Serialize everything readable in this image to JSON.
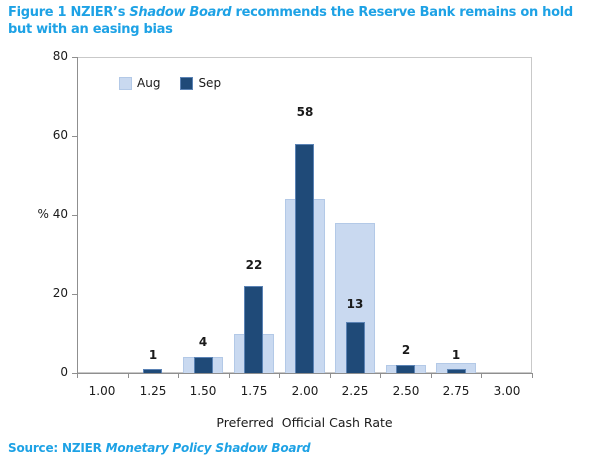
{
  "title": {
    "part1": "Figure 1 NZIER’s ",
    "italic": "Shadow Board",
    "part2": " recommends the Reserve Bank remains on hold but with an easing bias"
  },
  "source": {
    "prefix": "Source: NZIER ",
    "italic": "Monetary Policy Shadow Board"
  },
  "colors": {
    "title_blue": "#1ea2e5",
    "aug_fill": "#c9d9f0",
    "aug_border": "#b3c9e7",
    "sep_fill": "#1f4a78",
    "sep_border": "#5b83b5",
    "axis_line": "#8f8f8f",
    "plot_border": "#c9c9c9",
    "text": "#1a1a1a"
  },
  "chart_data": {
    "type": "bar",
    "title": "",
    "categories": [
      "1.00",
      "1.25",
      "1.50",
      "1.75",
      "2.00",
      "2.25",
      "2.50",
      "2.75",
      "3.00"
    ],
    "series": [
      {
        "name": "Aug",
        "fill": "#c9d9f0",
        "border": "#b3c9e7",
        "values": [
          0,
          0,
          4,
          10,
          44,
          38,
          2,
          2.5,
          0
        ]
      },
      {
        "name": "Sep",
        "fill": "#1f4a78",
        "border": "#5b83b5",
        "values": [
          0,
          1,
          4,
          22,
          58,
          13,
          2,
          1,
          0
        ]
      }
    ],
    "data_labels_series": "Sep",
    "data_labels": [
      null,
      1,
      4,
      22,
      58,
      13,
      2,
      1,
      null
    ],
    "xlabel": "Preferred  Official Cash Rate",
    "ylabel": "%",
    "ylim": [
      0,
      80
    ],
    "yticks": [
      0,
      20,
      40,
      60,
      80
    ],
    "grid": false,
    "legend_position": "top-left-inside"
  }
}
